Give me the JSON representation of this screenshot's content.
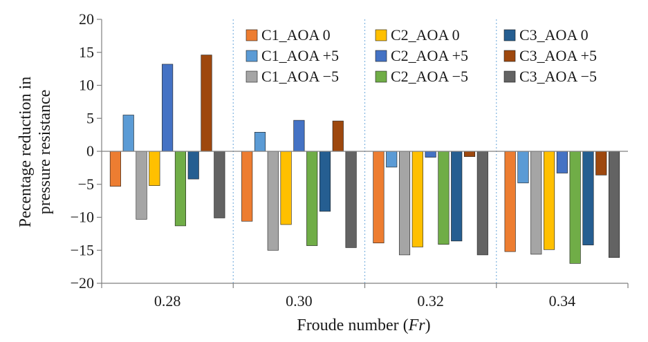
{
  "chart_data": {
    "type": "bar",
    "title": "",
    "xlabel_prefix": "Froude number (",
    "xlabel_symbol": "Fr",
    "xlabel_suffix": ")",
    "ylabel_line1": "Pecentage reduction in",
    "ylabel_line2": "pressure resistance",
    "ylim": [
      -20,
      20
    ],
    "yticks": [
      20,
      15,
      10,
      5,
      0,
      -5,
      -10,
      -15,
      -20
    ],
    "ytick_labels": [
      "20",
      "15",
      "10",
      "5",
      "0",
      "−5",
      "−10",
      "−15",
      "−20"
    ],
    "categories": [
      "0.28",
      "0.30",
      "0.32",
      "0.34"
    ],
    "legend_position": "top-right",
    "series": [
      {
        "name": "C1_AOA 0",
        "color": "#ED7D31",
        "values": [
          -5.3,
          -10.6,
          -13.9,
          -15.2
        ]
      },
      {
        "name": "C1_AOA +5",
        "color": "#5B9BD5",
        "values": [
          5.5,
          2.9,
          -2.4,
          -4.8
        ]
      },
      {
        "name": "C1_AOA −5",
        "color": "#A5A5A5",
        "values": [
          -10.3,
          -15.0,
          -15.7,
          -15.6
        ]
      },
      {
        "name": "C2_AOA 0",
        "color": "#FFC000",
        "values": [
          -5.2,
          -11.1,
          -14.5,
          -14.9
        ]
      },
      {
        "name": "C2_AOA +5",
        "color": "#4472C4",
        "values": [
          13.2,
          4.7,
          -0.9,
          -3.3
        ]
      },
      {
        "name": "C2_AOA −5",
        "color": "#70AD47",
        "values": [
          -11.3,
          -14.3,
          -14.1,
          -17.0
        ]
      },
      {
        "name": "C3_AOA 0",
        "color": "#255E91",
        "values": [
          -4.2,
          -9.1,
          -13.6,
          -14.2
        ]
      },
      {
        "name": "C3_AOA +5",
        "color": "#9E480E",
        "values": [
          14.6,
          4.6,
          -0.8,
          -3.6
        ]
      },
      {
        "name": "C3_AOA −5",
        "color": "#636363",
        "values": [
          -10.1,
          -14.6,
          -15.7,
          -16.1
        ]
      }
    ],
    "colors": {
      "axis": "#7f7f7f",
      "zero_line": "#7f7f7f",
      "separator": "#7FB3E0",
      "bar_edge": "#1a1a1a"
    }
  }
}
